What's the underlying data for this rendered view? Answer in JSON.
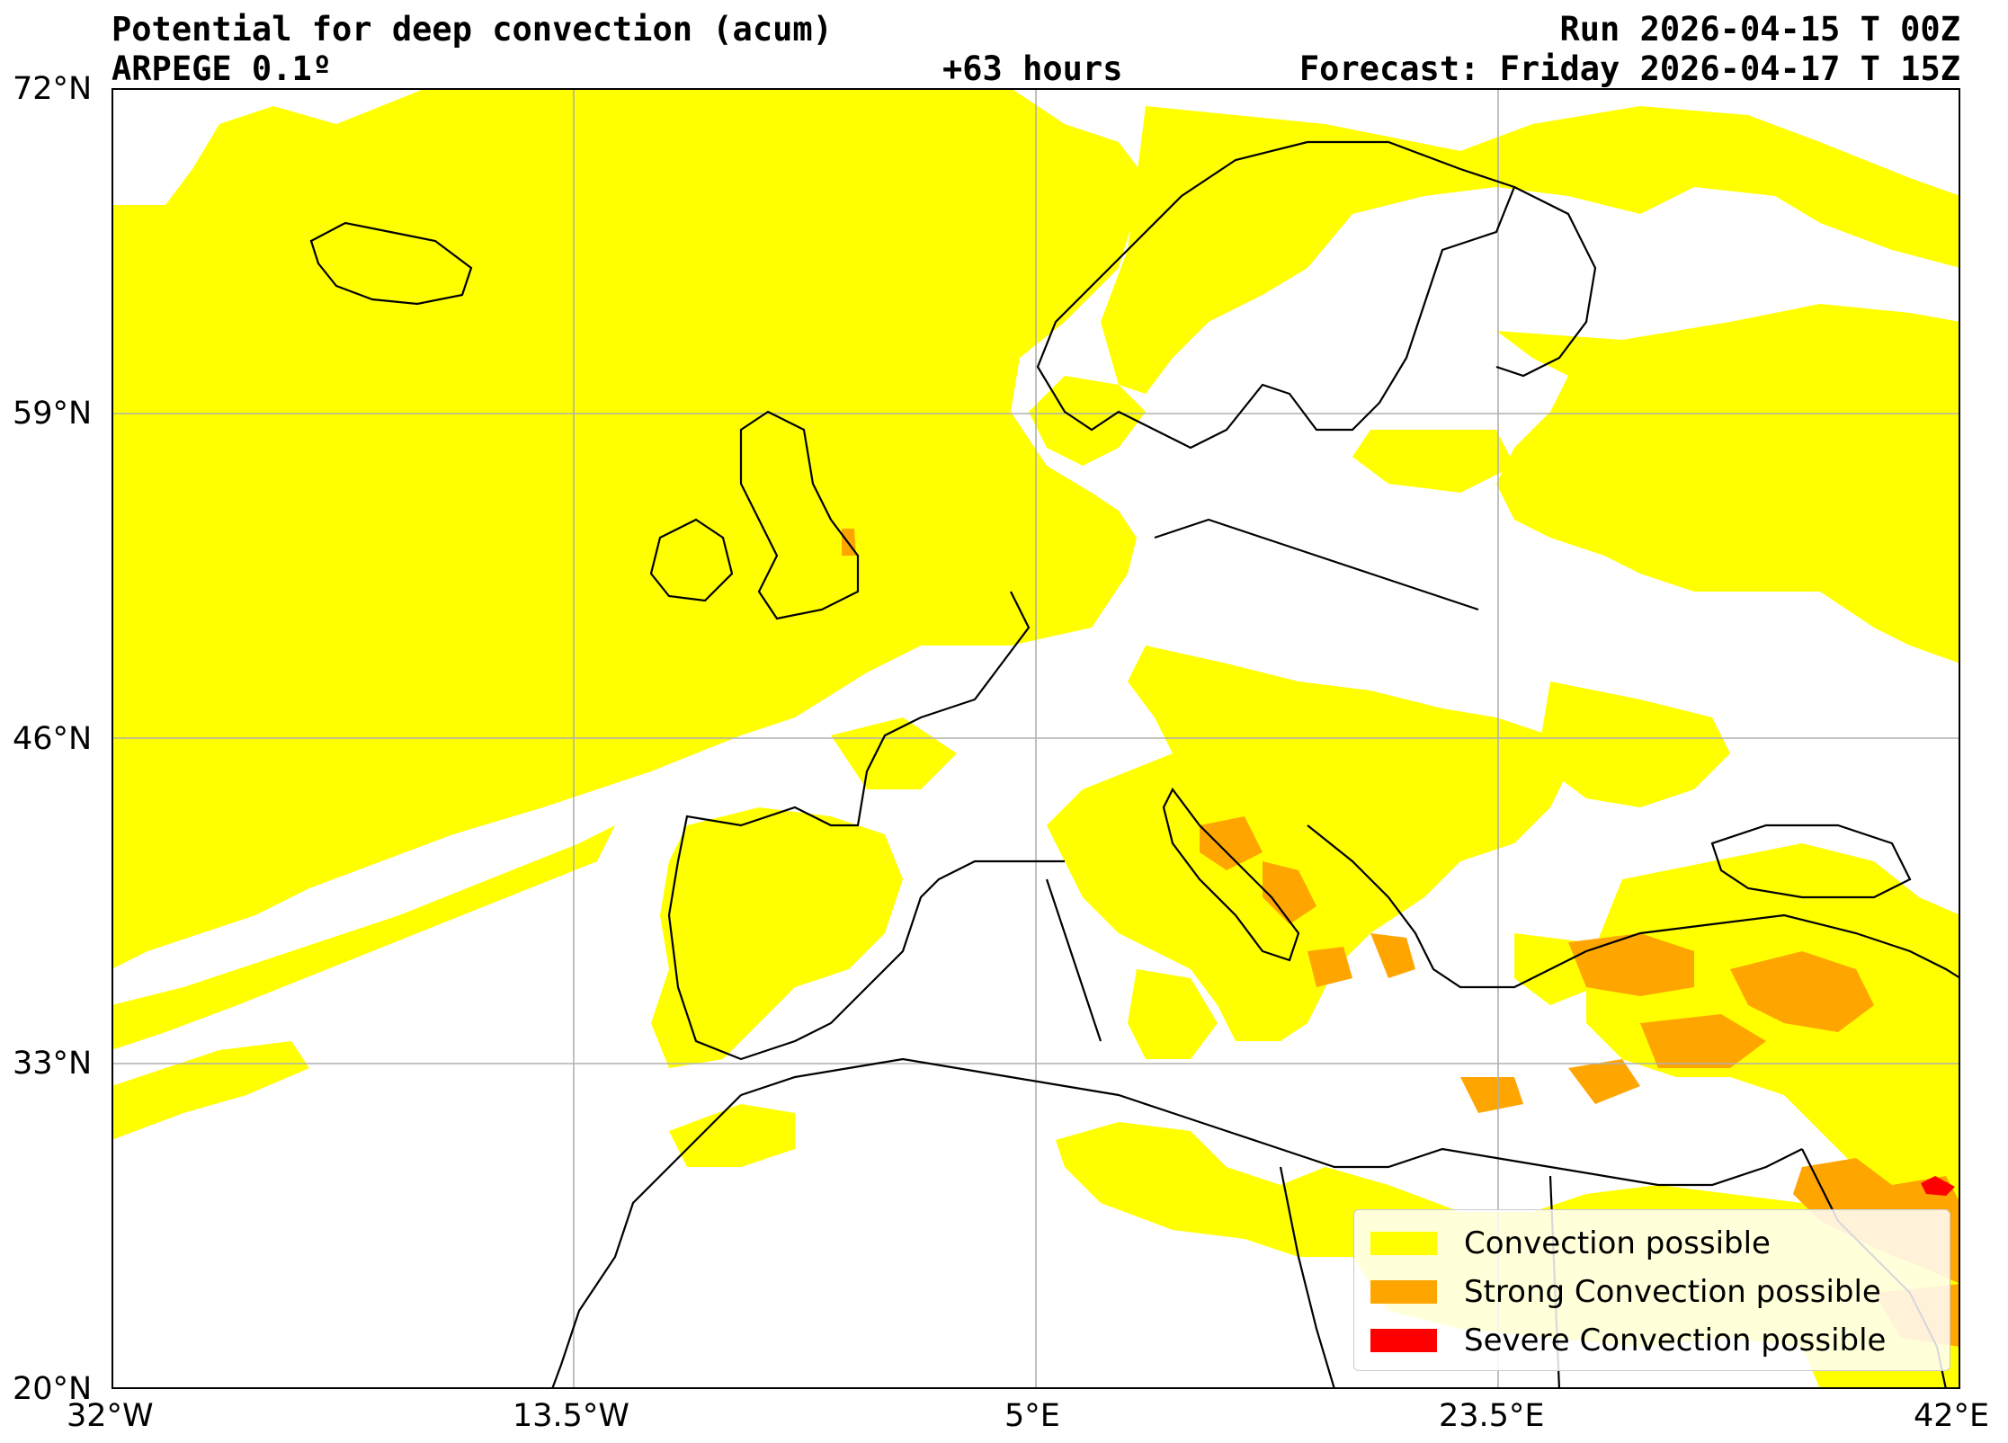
{
  "header": {
    "title": "Potential for deep convection (acum)",
    "model": "ARPEGE 0.1º",
    "lead": "+63 hours",
    "run": "Run 2026-04-15 T 00Z",
    "forecast": "Forecast: Friday 2026-04-17 T 15Z"
  },
  "axes": {
    "y_ticks": [
      "72°N",
      "59°N",
      "46°N",
      "33°N",
      "20°N"
    ],
    "x_ticks": [
      "32°W",
      "13.5°W",
      "5°E",
      "23.5°E",
      "42°E"
    ],
    "lon_range": [
      -32,
      42
    ],
    "lat_range": [
      20,
      72
    ],
    "grid": true
  },
  "legend": {
    "placement": "bottom-right",
    "items": [
      {
        "label": "Convection possible",
        "color": "#ffff00"
      },
      {
        "label": "Strong Convection possible",
        "color": "#ffa500"
      },
      {
        "label": "Severe Convection possible",
        "color": "#ff0000"
      }
    ]
  },
  "colors": {
    "coast": "#000000",
    "grid": "#b0b0b0"
  }
}
